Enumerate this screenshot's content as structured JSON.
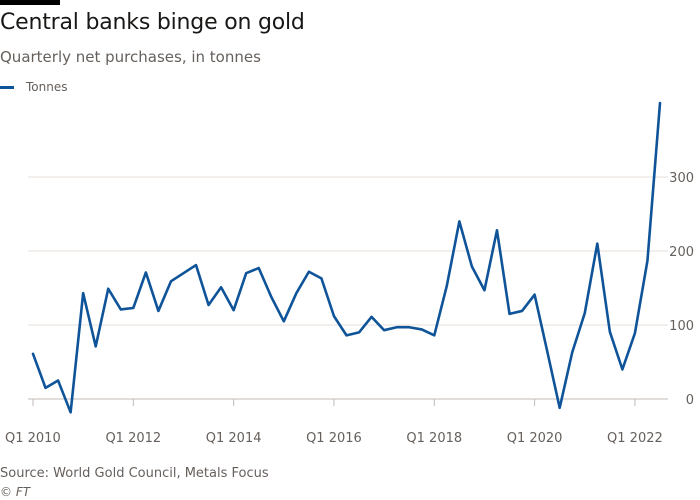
{
  "title": "Central banks binge on gold",
  "subtitle": "Quarterly net purchases, in tonnes",
  "source": "Source: World Gold Council, Metals Focus",
  "copyright": "© FT",
  "colors": {
    "line": "#0f5499",
    "grid": "#e6dfd8",
    "axis": "#c2bbb5",
    "text": "#66605c"
  },
  "chart_data": {
    "type": "line",
    "title": "Central banks binge on gold",
    "subtitle": "Quarterly net purchases, in tonnes",
    "xlabel": "",
    "ylabel": "",
    "ylim": [
      -20,
      400
    ],
    "yticks": [
      0,
      100,
      200,
      300
    ],
    "legend": "top-left",
    "grid": true,
    "x_tick_indices": [
      0,
      8,
      16,
      24,
      32,
      40,
      48
    ],
    "x": [
      "Q1 2010",
      "Q2 2010",
      "Q3 2010",
      "Q4 2010",
      "Q1 2011",
      "Q2 2011",
      "Q3 2011",
      "Q4 2011",
      "Q1 2012",
      "Q2 2012",
      "Q3 2012",
      "Q4 2012",
      "Q1 2013",
      "Q2 2013",
      "Q3 2013",
      "Q4 2013",
      "Q1 2014",
      "Q2 2014",
      "Q3 2014",
      "Q4 2014",
      "Q1 2015",
      "Q2 2015",
      "Q3 2015",
      "Q4 2015",
      "Q1 2016",
      "Q2 2016",
      "Q3 2016",
      "Q4 2016",
      "Q1 2017",
      "Q2 2017",
      "Q3 2017",
      "Q4 2017",
      "Q1 2018",
      "Q2 2018",
      "Q3 2018",
      "Q4 2018",
      "Q1 2019",
      "Q2 2019",
      "Q3 2019",
      "Q4 2019",
      "Q1 2020",
      "Q2 2020",
      "Q3 2020",
      "Q4 2020",
      "Q1 2021",
      "Q2 2021",
      "Q3 2021",
      "Q4 2021",
      "Q1 2022",
      "Q2 2022",
      "Q3 2022"
    ],
    "series": [
      {
        "name": "Tonnes",
        "values": [
          61,
          15,
          25,
          -18,
          143,
          71,
          149,
          121,
          123,
          171,
          119,
          159,
          170,
          181,
          127,
          151,
          120,
          170,
          177,
          138,
          105,
          143,
          172,
          163,
          112,
          86,
          90,
          111,
          93,
          97,
          97,
          94,
          86,
          153,
          240,
          179,
          147,
          228,
          115,
          119,
          141,
          65,
          -12,
          63,
          116,
          210,
          91,
          40,
          89,
          187,
          400
        ]
      }
    ]
  },
  "x_tick_labels": [
    "Q1 2010",
    "Q1 2012",
    "Q1 2014",
    "Q1 2016",
    "Q1 2018",
    "Q1 2020",
    "Q1 2022"
  ],
  "y_tick_labels": [
    "0",
    "100",
    "200",
    "300"
  ]
}
